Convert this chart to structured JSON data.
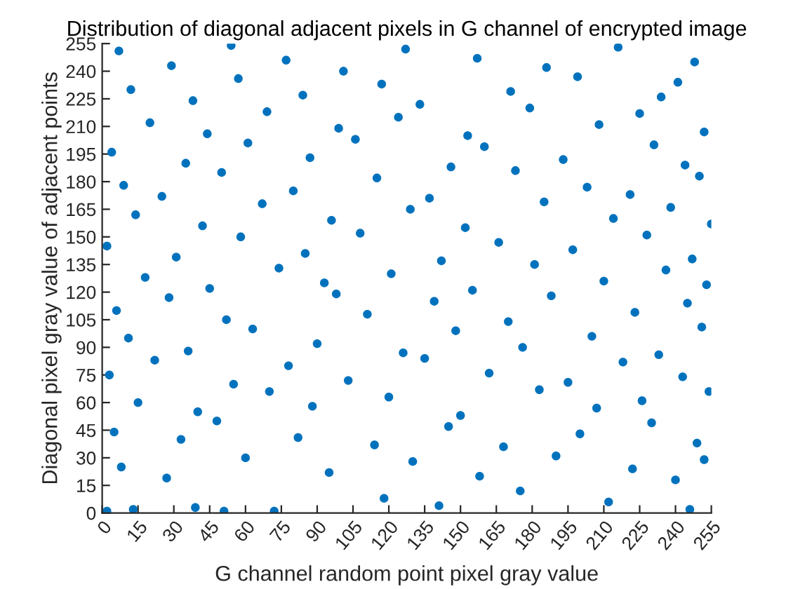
{
  "chart_data": {
    "type": "scatter",
    "title": "Distribution of diagonal adjacent pixels in G channel of encrypted image",
    "xlabel": "G channel random point pixel gray value",
    "ylabel": "Diagonal pixel gray value of adjacent points",
    "xlim": [
      0,
      255
    ],
    "ylim": [
      0,
      255
    ],
    "xticks": [
      0,
      15,
      30,
      45,
      60,
      75,
      90,
      105,
      120,
      135,
      150,
      165,
      180,
      195,
      210,
      225,
      240,
      255
    ],
    "yticks": [
      0,
      15,
      30,
      45,
      60,
      75,
      90,
      105,
      120,
      135,
      150,
      165,
      180,
      195,
      210,
      225,
      240,
      255
    ],
    "marker": "circle",
    "series": [
      {
        "color": "#0072bd",
        "x": [
          2,
          13,
          39,
          51,
          72,
          118,
          141,
          175,
          212,
          246,
          8,
          27,
          60,
          95,
          130,
          158,
          190,
          222,
          240,
          252,
          5,
          33,
          48,
          82,
          114,
          145,
          168,
          200,
          230,
          249,
          15,
          40,
          70,
          88,
          120,
          150,
          183,
          207,
          226,
          254,
          3,
          22,
          55,
          78,
          103,
          135,
          162,
          195,
          218,
          243,
          11,
          36,
          63,
          90,
          126,
          148,
          176,
          205,
          233,
          251,
          6,
          28,
          52,
          98,
          111,
          139,
          170,
          188,
          223,
          245,
          18,
          45,
          74,
          93,
          121,
          155,
          181,
          210,
          236,
          253,
          2,
          31,
          58,
          85,
          108,
          142,
          166,
          197,
          228,
          247,
          14,
          42,
          67,
          96,
          129,
          152,
          185,
          214,
          238,
          255,
          9,
          25,
          50,
          80,
          115,
          137,
          173,
          203,
          221,
          250,
          4,
          35,
          61,
          87,
          106,
          146,
          160,
          193,
          231,
          244,
          20,
          44,
          69,
          99,
          124,
          153,
          179,
          208,
          225,
          252,
          12,
          38,
          57,
          84,
          117,
          133,
          171,
          199,
          234,
          241,
          7,
          29,
          54,
          77,
          101,
          127,
          157,
          186,
          216,
          248
        ],
        "values": [
          1,
          2,
          3,
          1,
          1,
          8,
          4,
          12,
          6,
          2,
          25,
          19,
          30,
          22,
          28,
          20,
          31,
          24,
          18,
          29,
          44,
          40,
          50,
          41,
          37,
          47,
          36,
          43,
          49,
          38,
          60,
          55,
          66,
          58,
          63,
          53,
          67,
          57,
          61,
          66,
          75,
          83,
          70,
          80,
          72,
          84,
          76,
          71,
          82,
          74,
          95,
          88,
          100,
          92,
          87,
          99,
          90,
          96,
          86,
          101,
          110,
          117,
          105,
          119,
          108,
          115,
          104,
          118,
          109,
          114,
          128,
          122,
          133,
          125,
          130,
          121,
          135,
          126,
          132,
          124,
          145,
          139,
          150,
          141,
          152,
          137,
          147,
          143,
          151,
          138,
          162,
          156,
          168,
          159,
          165,
          155,
          169,
          160,
          166,
          157,
          178,
          172,
          185,
          175,
          182,
          171,
          186,
          177,
          173,
          183,
          196,
          190,
          201,
          193,
          203,
          188,
          199,
          192,
          200,
          189,
          212,
          206,
          218,
          209,
          215,
          205,
          220,
          211,
          217,
          207,
          230,
          224,
          236,
          227,
          233,
          222,
          229,
          237,
          226,
          234,
          251,
          243,
          254,
          246,
          240,
          252,
          247,
          242,
          253,
          245
        ]
      }
    ]
  }
}
